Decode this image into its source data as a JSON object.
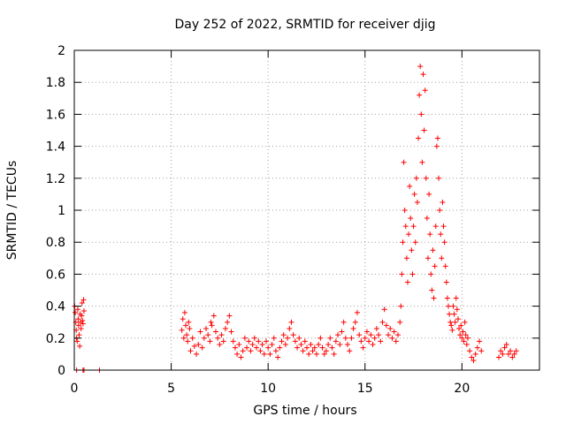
{
  "chart_data": {
    "type": "scatter",
    "title": "Day 252 of 2022, SRMTID for receiver djig",
    "xlabel": "GPS time / hours",
    "ylabel": "SRMTID / TECUs",
    "xlim": [
      0,
      24
    ],
    "ylim": [
      0,
      2
    ],
    "xticks": [
      0,
      5,
      10,
      15,
      20
    ],
    "xtick_labels": [
      "0",
      "5",
      "10",
      "15",
      "20"
    ],
    "yticks": [
      0,
      0.2,
      0.4,
      0.6,
      0.8,
      1,
      1.2,
      1.4,
      1.6,
      1.8,
      2
    ],
    "ytick_labels": [
      "0",
      "0.2",
      "0.4",
      "0.6",
      "0.8",
      "1",
      "1.2",
      "1.4",
      "1.6",
      "1.8",
      "2"
    ],
    "grid": true,
    "marker": "+",
    "color": "#ff0000",
    "series": [
      {
        "name": "SRMTID",
        "points": [
          [
            0.02,
            0.4
          ],
          [
            0.05,
            0.36
          ],
          [
            0.08,
            0.3
          ],
          [
            0.1,
            0.25
          ],
          [
            0.12,
            0.2
          ],
          [
            0.15,
            0.18
          ],
          [
            0.18,
            0.38
          ],
          [
            0.2,
            0.32
          ],
          [
            0.22,
            0.28
          ],
          [
            0.25,
            0.22
          ],
          [
            0.28,
            0.15
          ],
          [
            0.3,
            0.35
          ],
          [
            0.32,
            0.3
          ],
          [
            0.35,
            0.26
          ],
          [
            0.38,
            0.34
          ],
          [
            0.4,
            0.42
          ],
          [
            0.42,
            0.31
          ],
          [
            0.45,
            0.29
          ],
          [
            0.48,
            0.44
          ],
          [
            0.5,
            0.37
          ],
          [
            0.12,
            0.0
          ],
          [
            0.45,
            0.0
          ],
          [
            0.5,
            0.0
          ],
          [
            1.3,
            0.0
          ],
          [
            5.55,
            0.25
          ],
          [
            5.6,
            0.32
          ],
          [
            5.65,
            0.2
          ],
          [
            5.7,
            0.36
          ],
          [
            5.75,
            0.28
          ],
          [
            5.8,
            0.22
          ],
          [
            5.85,
            0.18
          ],
          [
            5.9,
            0.3
          ],
          [
            5.95,
            0.26
          ],
          [
            6.0,
            0.12
          ],
          [
            6.1,
            0.2
          ],
          [
            6.2,
            0.15
          ],
          [
            6.3,
            0.1
          ],
          [
            6.4,
            0.16
          ],
          [
            6.5,
            0.24
          ],
          [
            6.6,
            0.14
          ],
          [
            6.7,
            0.2
          ],
          [
            6.8,
            0.26
          ],
          [
            6.9,
            0.22
          ],
          [
            7.0,
            0.18
          ],
          [
            7.05,
            0.3
          ],
          [
            7.1,
            0.28
          ],
          [
            7.2,
            0.34
          ],
          [
            7.3,
            0.24
          ],
          [
            7.4,
            0.2
          ],
          [
            7.5,
            0.16
          ],
          [
            7.6,
            0.22
          ],
          [
            7.7,
            0.18
          ],
          [
            7.8,
            0.26
          ],
          [
            7.9,
            0.3
          ],
          [
            8.0,
            0.34
          ],
          [
            8.1,
            0.24
          ],
          [
            8.2,
            0.18
          ],
          [
            8.3,
            0.14
          ],
          [
            8.4,
            0.1
          ],
          [
            8.5,
            0.16
          ],
          [
            8.6,
            0.08
          ],
          [
            8.7,
            0.12
          ],
          [
            8.8,
            0.2
          ],
          [
            8.9,
            0.14
          ],
          [
            9.0,
            0.18
          ],
          [
            9.1,
            0.12
          ],
          [
            9.2,
            0.16
          ],
          [
            9.3,
            0.2
          ],
          [
            9.4,
            0.14
          ],
          [
            9.5,
            0.18
          ],
          [
            9.6,
            0.12
          ],
          [
            9.7,
            0.16
          ],
          [
            9.8,
            0.1
          ],
          [
            9.9,
            0.18
          ],
          [
            10.0,
            0.14
          ],
          [
            10.1,
            0.1
          ],
          [
            10.2,
            0.16
          ],
          [
            10.3,
            0.2
          ],
          [
            10.4,
            0.12
          ],
          [
            10.5,
            0.08
          ],
          [
            10.6,
            0.14
          ],
          [
            10.7,
            0.18
          ],
          [
            10.8,
            0.22
          ],
          [
            10.9,
            0.16
          ],
          [
            11.0,
            0.2
          ],
          [
            11.1,
            0.26
          ],
          [
            11.2,
            0.3
          ],
          [
            11.3,
            0.22
          ],
          [
            11.4,
            0.18
          ],
          [
            11.5,
            0.14
          ],
          [
            11.6,
            0.2
          ],
          [
            11.7,
            0.16
          ],
          [
            11.8,
            0.12
          ],
          [
            11.9,
            0.18
          ],
          [
            12.0,
            0.14
          ],
          [
            12.1,
            0.1
          ],
          [
            12.2,
            0.16
          ],
          [
            12.3,
            0.12
          ],
          [
            12.4,
            0.14
          ],
          [
            12.5,
            0.1
          ],
          [
            12.6,
            0.16
          ],
          [
            12.7,
            0.2
          ],
          [
            12.8,
            0.14
          ],
          [
            12.9,
            0.1
          ],
          [
            13.0,
            0.12
          ],
          [
            13.1,
            0.16
          ],
          [
            13.2,
            0.2
          ],
          [
            13.3,
            0.14
          ],
          [
            13.4,
            0.1
          ],
          [
            13.5,
            0.18
          ],
          [
            13.6,
            0.22
          ],
          [
            13.7,
            0.16
          ],
          [
            13.8,
            0.24
          ],
          [
            13.9,
            0.3
          ],
          [
            14.0,
            0.2
          ],
          [
            14.1,
            0.16
          ],
          [
            14.2,
            0.12
          ],
          [
            14.3,
            0.2
          ],
          [
            14.4,
            0.26
          ],
          [
            14.5,
            0.3
          ],
          [
            14.6,
            0.36
          ],
          [
            14.7,
            0.22
          ],
          [
            14.8,
            0.18
          ],
          [
            14.9,
            0.14
          ],
          [
            15.0,
            0.2
          ],
          [
            15.1,
            0.24
          ],
          [
            15.2,
            0.18
          ],
          [
            15.3,
            0.22
          ],
          [
            15.4,
            0.16
          ],
          [
            15.5,
            0.2
          ],
          [
            15.6,
            0.26
          ],
          [
            15.7,
            0.22
          ],
          [
            15.8,
            0.18
          ],
          [
            15.9,
            0.3
          ],
          [
            16.0,
            0.38
          ],
          [
            16.1,
            0.28
          ],
          [
            16.2,
            0.22
          ],
          [
            16.3,
            0.26
          ],
          [
            16.4,
            0.2
          ],
          [
            16.5,
            0.24
          ],
          [
            16.6,
            0.18
          ],
          [
            16.7,
            0.22
          ],
          [
            16.8,
            0.3
          ],
          [
            16.85,
            0.4
          ],
          [
            16.9,
            0.6
          ],
          [
            16.95,
            0.8
          ],
          [
            17.0,
            1.3
          ],
          [
            17.05,
            1.0
          ],
          [
            17.1,
            0.9
          ],
          [
            17.15,
            0.7
          ],
          [
            17.2,
            0.55
          ],
          [
            17.25,
            0.85
          ],
          [
            17.3,
            1.15
          ],
          [
            17.35,
            0.95
          ],
          [
            17.4,
            0.75
          ],
          [
            17.45,
            0.6
          ],
          [
            17.5,
            0.9
          ],
          [
            17.55,
            1.1
          ],
          [
            17.6,
            0.8
          ],
          [
            17.65,
            1.2
          ],
          [
            17.7,
            1.05
          ],
          [
            17.75,
            1.45
          ],
          [
            17.8,
            1.72
          ],
          [
            17.85,
            1.9
          ],
          [
            17.9,
            1.6
          ],
          [
            17.95,
            1.3
          ],
          [
            18.0,
            1.85
          ],
          [
            18.05,
            1.5
          ],
          [
            18.1,
            1.75
          ],
          [
            18.15,
            1.2
          ],
          [
            18.2,
            0.95
          ],
          [
            18.25,
            0.7
          ],
          [
            18.3,
            1.1
          ],
          [
            18.35,
            0.85
          ],
          [
            18.4,
            0.6
          ],
          [
            18.45,
            0.5
          ],
          [
            18.5,
            0.75
          ],
          [
            18.55,
            0.45
          ],
          [
            18.6,
            0.65
          ],
          [
            18.65,
            0.9
          ],
          [
            18.7,
            1.4
          ],
          [
            18.75,
            1.45
          ],
          [
            18.8,
            1.2
          ],
          [
            18.85,
            1.0
          ],
          [
            18.9,
            0.85
          ],
          [
            18.95,
            0.7
          ],
          [
            19.0,
            1.05
          ],
          [
            19.05,
            0.9
          ],
          [
            19.1,
            0.8
          ],
          [
            19.15,
            0.65
          ],
          [
            19.2,
            0.55
          ],
          [
            19.25,
            0.45
          ],
          [
            19.3,
            0.4
          ],
          [
            19.35,
            0.35
          ],
          [
            19.4,
            0.3
          ],
          [
            19.45,
            0.28
          ],
          [
            19.5,
            0.25
          ],
          [
            19.55,
            0.4
          ],
          [
            19.6,
            0.35
          ],
          [
            19.65,
            0.3
          ],
          [
            19.7,
            0.45
          ],
          [
            19.75,
            0.38
          ],
          [
            19.8,
            0.32
          ],
          [
            19.85,
            0.26
          ],
          [
            19.9,
            0.22
          ],
          [
            19.95,
            0.28
          ],
          [
            20.0,
            0.2
          ],
          [
            20.05,
            0.24
          ],
          [
            20.1,
            0.18
          ],
          [
            20.15,
            0.3
          ],
          [
            20.2,
            0.22
          ],
          [
            20.25,
            0.16
          ],
          [
            20.3,
            0.2
          ],
          [
            20.4,
            0.12
          ],
          [
            20.5,
            0.08
          ],
          [
            20.6,
            0.06
          ],
          [
            20.7,
            0.1
          ],
          [
            20.8,
            0.14
          ],
          [
            20.9,
            0.18
          ],
          [
            21.0,
            0.12
          ],
          [
            21.9,
            0.08
          ],
          [
            22.0,
            0.12
          ],
          [
            22.1,
            0.1
          ],
          [
            22.2,
            0.14
          ],
          [
            22.3,
            0.16
          ],
          [
            22.4,
            0.1
          ],
          [
            22.5,
            0.12
          ],
          [
            22.6,
            0.08
          ],
          [
            22.7,
            0.1
          ],
          [
            22.8,
            0.12
          ]
        ]
      }
    ]
  }
}
